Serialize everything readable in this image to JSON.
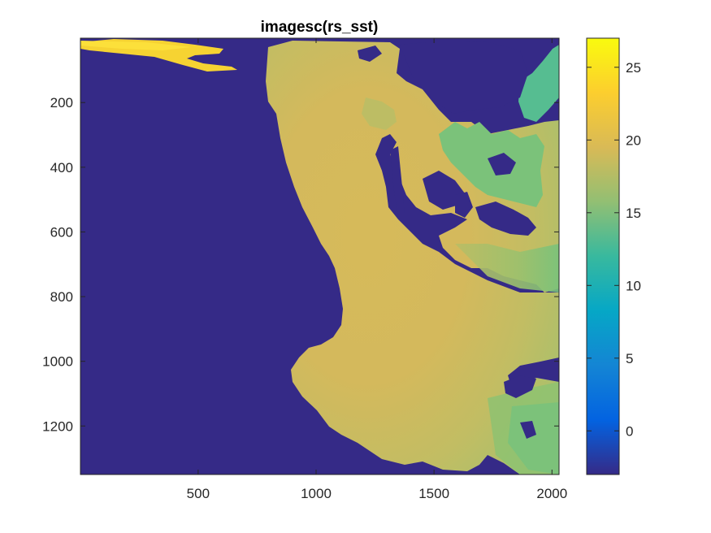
{
  "chart_data": {
    "type": "heatmap",
    "title": "imagesc(rs_sst)",
    "xlabel": "",
    "ylabel": "",
    "xlim": [
      1,
      2030
    ],
    "ylim": [
      1,
      1350
    ],
    "y_reversed": true,
    "x_ticks": [
      500,
      1000,
      1500,
      2000
    ],
    "x_tick_labels": [
      "500",
      "1000",
      "1500",
      "2000"
    ],
    "y_ticks": [
      200,
      400,
      600,
      800,
      1000,
      1200
    ],
    "y_tick_labels": [
      "200",
      "400",
      "600",
      "800",
      "1000",
      "1200"
    ],
    "colormap": "parula",
    "colorbar": {
      "clim": [
        -3,
        27
      ],
      "ticks": [
        0,
        5,
        10,
        15,
        20,
        25
      ],
      "tick_labels": [
        "0",
        "5",
        "10",
        "15",
        "20",
        "25"
      ]
    },
    "background_value": -3,
    "field_description_values": {
      "offshore_warm_band": 21,
      "central_plume": 19,
      "inlet_cool_zone": 15.5,
      "southeast_cool_zone": 16
    }
  },
  "colors": {
    "land_fill": "#352a87",
    "parula_stops": [
      "#352a87",
      "#0363e1",
      "#1485d4",
      "#06a7c6",
      "#38b99e",
      "#92bf73",
      "#d9ba56",
      "#fcce2e",
      "#f9fb0e"
    ]
  }
}
